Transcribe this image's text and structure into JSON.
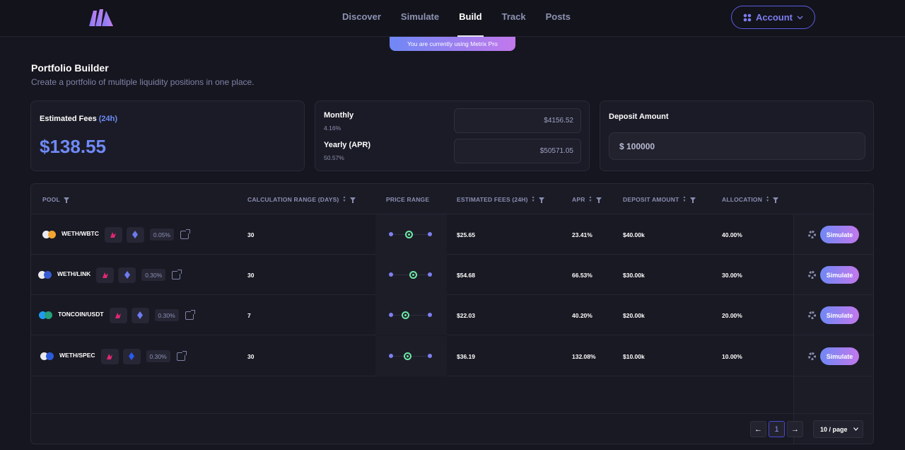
{
  "nav": {
    "items": [
      "Discover",
      "Simulate",
      "Build",
      "Track",
      "Posts"
    ],
    "active": "Build",
    "account_label": "Account"
  },
  "banner": {
    "text": "You are currently using Metrix Pro"
  },
  "header": {
    "title": "Portfolio Builder",
    "subtitle": "Create a portfolio of multiple liquidity positions in one place."
  },
  "fees_card": {
    "label": "Estimated Fees",
    "period": "(24h)",
    "value": "$138.55"
  },
  "returns_card": {
    "monthly_label": "Monthly",
    "monthly_pct": "4.16%",
    "monthly_value": "$4156.52",
    "yearly_label": "Yearly (APR)",
    "yearly_pct": "50.57%",
    "yearly_value": "$50571.05"
  },
  "deposit_card": {
    "label": "Deposit Amount",
    "value": "$ 100000"
  },
  "table": {
    "headers": {
      "pool": "POOL",
      "calc_range": "CALCULATION RANGE (DAYS)",
      "price_range": "PRICE RANGE",
      "est_fees": "ESTIMATED FEES (24H)",
      "apr": "APR",
      "deposit": "DEPOSIT AMOUNT",
      "allocation": "ALLOCATION"
    },
    "rows": [
      {
        "pair": "WETH/WBTC",
        "fee_tier": "0.05%",
        "calc_days": "30",
        "est_fees": "$25.65",
        "apr": "23.41%",
        "deposit": "$40.00k",
        "allocation": "40.00%",
        "action": "Simulate",
        "price_position": 0.46,
        "token_colors": [
          "#e9e9ef",
          "#f3a432"
        ],
        "chain_color": "#6f79f0"
      },
      {
        "pair": "WETH/LINK",
        "fee_tier": "0.30%",
        "calc_days": "30",
        "est_fees": "$54.68",
        "apr": "66.53%",
        "deposit": "$30.00k",
        "allocation": "30.00%",
        "action": "Simulate",
        "price_position": 0.56,
        "token_colors": [
          "#e9e9ef",
          "#375bd2"
        ],
        "chain_color": "#6f79f0"
      },
      {
        "pair": "TONCOIN/USDT",
        "fee_tier": "0.30%",
        "calc_days": "7",
        "est_fees": "$22.03",
        "apr": "40.20%",
        "deposit": "$20.00k",
        "allocation": "20.00%",
        "action": "Simulate",
        "price_position": 0.36,
        "token_colors": [
          "#1f9bf0",
          "#26a17b"
        ],
        "chain_color": "#6f79f0"
      },
      {
        "pair": "WETH/SPEC",
        "fee_tier": "0.30%",
        "calc_days": "30",
        "est_fees": "$36.19",
        "apr": "132.08%",
        "deposit": "$10.00k",
        "allocation": "10.00%",
        "action": "Simulate",
        "price_position": 0.41,
        "token_colors": [
          "#e9e9ef",
          "#2c5bd9"
        ],
        "chain_color": "#2a5bf0"
      }
    ]
  },
  "pagination": {
    "prev": "←",
    "page": "1",
    "next": "→",
    "page_size": "10 / page"
  }
}
